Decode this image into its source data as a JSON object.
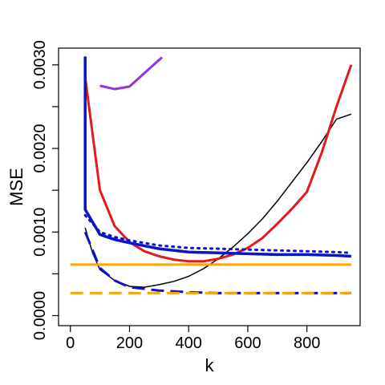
{
  "chart_data": {
    "type": "line",
    "title": "",
    "xlabel": "k",
    "ylabel": "MSE",
    "xlim": [
      -40,
      980
    ],
    "ylim": [
      -0.00012,
      0.0032
    ],
    "x_ticks": [
      0,
      200,
      400,
      600,
      800
    ],
    "x_tick_labels": [
      "0",
      "200",
      "400",
      "600",
      "800"
    ],
    "y_ticks": [
      0.0,
      0.001,
      0.002,
      0.003
    ],
    "y_tick_labels": [
      "0.0000",
      "0.0010",
      "0.0020",
      "0.0030"
    ],
    "grid": false,
    "legend": "none",
    "series": [
      {
        "color": "#000000",
        "style": "solid",
        "width": 1.5,
        "x": [
          50,
          75,
          100,
          150,
          200,
          250,
          300,
          350,
          400,
          450,
          500,
          550,
          600,
          650,
          700,
          750,
          800,
          850,
          900,
          950
        ],
        "y": [
          0.00105,
          0.00075,
          0.00055,
          0.00042,
          0.00035,
          0.00034,
          0.00037,
          0.00041,
          0.00047,
          0.00056,
          0.00068,
          0.00082,
          0.00098,
          0.00116,
          0.00137,
          0.0016,
          0.00183,
          0.00208,
          0.00235,
          0.00241
        ]
      },
      {
        "color": "#e31a1c",
        "style": "solid",
        "width": 3,
        "x": [
          50,
          100,
          150,
          200,
          250,
          300,
          350,
          400,
          450,
          500,
          550,
          600,
          650,
          700,
          750,
          800,
          850,
          900,
          950
        ],
        "y": [
          0.00285,
          0.0015,
          0.00107,
          0.00088,
          0.00077,
          0.00071,
          0.00067,
          0.00065,
          0.00065,
          0.00068,
          0.00073,
          0.00081,
          0.00093,
          0.0011,
          0.00128,
          0.00148,
          0.00195,
          0.0025,
          0.003
        ]
      },
      {
        "color": "#9b30d9",
        "style": "solid",
        "width": 3,
        "x": [
          100,
          150,
          200,
          250,
          310
        ],
        "y": [
          0.00275,
          0.00271,
          0.00274,
          0.0029,
          0.00309
        ]
      },
      {
        "color": "#0a14c8",
        "style": "solid",
        "width": 3.5,
        "x": [
          50,
          50,
          100,
          150,
          200,
          300,
          400,
          500,
          600,
          700,
          800,
          900,
          950
        ],
        "y": [
          0.0031,
          0.00127,
          0.00097,
          0.00091,
          0.00087,
          0.0008,
          0.00076,
          0.00075,
          0.00074,
          0.00073,
          0.00073,
          0.00072,
          0.00071
        ]
      },
      {
        "color": "#0a14c8",
        "style": "dotted",
        "width": 3,
        "x": [
          50,
          100,
          150,
          200,
          300,
          400,
          500,
          600,
          700,
          800,
          900,
          950
        ],
        "y": [
          0.0012,
          0.001,
          0.00094,
          0.0009,
          0.00084,
          0.00081,
          0.0008,
          0.00079,
          0.00078,
          0.00077,
          0.00076,
          0.00075
        ]
      },
      {
        "color": "#0a14c8",
        "style": "dashed",
        "width": 3,
        "x": [
          50,
          100,
          150,
          200,
          250,
          300,
          400,
          500,
          600,
          700,
          800,
          950
        ],
        "y": [
          0.001,
          0.00057,
          0.00042,
          0.00034,
          0.00032,
          0.0003,
          0.00028,
          0.00027,
          0.00027,
          0.00027,
          0.00027,
          0.00027
        ]
      },
      {
        "color": "#ffa500",
        "style": "solid",
        "width": 3,
        "x": [
          0,
          950
        ],
        "y": [
          0.00061,
          0.00061
        ]
      },
      {
        "color": "#ffa500",
        "style": "dashed",
        "width": 3,
        "x": [
          0,
          950
        ],
        "y": [
          0.00027,
          0.00027
        ]
      }
    ]
  }
}
